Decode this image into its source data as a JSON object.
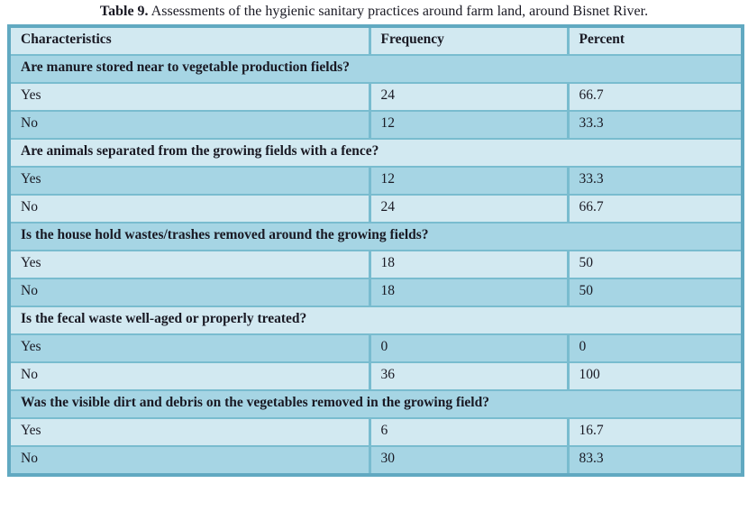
{
  "caption": {
    "label": "Table 9.",
    "text": " Assessments of the hygienic sanitary practices around farm land, around Bisnet River."
  },
  "table": {
    "columns": [
      "Characteristics",
      "Frequency",
      "Percent"
    ],
    "sections": [
      {
        "question": "Are manure stored near to vegetable production fields?",
        "rows": [
          {
            "label": "Yes",
            "frequency": "24",
            "percent": "66.7"
          },
          {
            "label": "No",
            "frequency": "12",
            "percent": "33.3"
          }
        ]
      },
      {
        "question": "Are animals separated from the growing fields with a fence?",
        "rows": [
          {
            "label": "Yes",
            "frequency": "12",
            "percent": "33.3"
          },
          {
            "label": "No",
            "frequency": "24",
            "percent": "66.7"
          }
        ]
      },
      {
        "question": "Is the house hold wastes/trashes removed around the growing fields?",
        "rows": [
          {
            "label": "Yes",
            "frequency": "18",
            "percent": "50"
          },
          {
            "label": "No",
            "frequency": "18",
            "percent": "50"
          }
        ]
      },
      {
        "question": "Is the fecal waste well-aged or properly treated?",
        "rows": [
          {
            "label": "Yes",
            "frequency": "0",
            "percent": "0"
          },
          {
            "label": "No",
            "frequency": "36",
            "percent": "100"
          }
        ]
      },
      {
        "question": "Was the visible dirt and debris on the vegetables removed in the growing field?",
        "rows": [
          {
            "label": "Yes",
            "frequency": "6",
            "percent": "16.7"
          },
          {
            "label": "No",
            "frequency": "30",
            "percent": "83.3"
          }
        ]
      }
    ]
  },
  "colors": {
    "row_light": "#d2e9f1",
    "row_medium": "#a6d5e4",
    "inner_border": "#79bccf",
    "outer_border": "#61a9c1",
    "text": "#191923",
    "page_background": "#ffffff"
  }
}
